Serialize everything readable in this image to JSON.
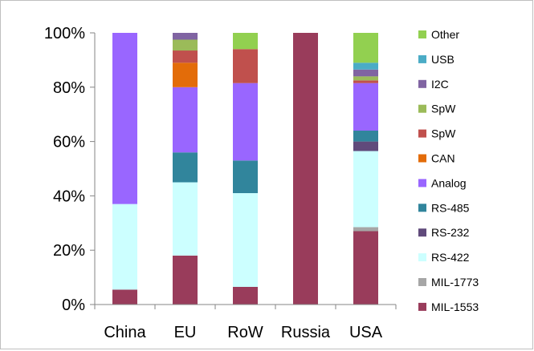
{
  "chart_data": {
    "type": "bar",
    "stacked": true,
    "categories": [
      "China",
      "EU",
      "RoW",
      "Russia",
      "USA"
    ],
    "ylim": [
      0,
      100
    ],
    "y_ticks": [
      "0%",
      "20%",
      "40%",
      "60%",
      "80%",
      "100%"
    ],
    "legend_position": "right",
    "grid": false,
    "series": [
      {
        "name": "MIL-1553",
        "color": "#993c5b",
        "values": [
          5.5,
          18,
          6.5,
          100,
          27
        ]
      },
      {
        "name": "MIL-1773",
        "color": "#a6a6a6",
        "values": [
          0,
          0,
          0,
          0,
          1.5
        ]
      },
      {
        "name": "RS-422",
        "color": "#ccffff",
        "values": [
          31.5,
          27,
          34.5,
          0,
          28
        ]
      },
      {
        "name": "RS-232",
        "color": "#604a7b",
        "values": [
          0,
          0,
          0,
          0,
          3.5
        ]
      },
      {
        "name": "RS-485",
        "color": "#31859c",
        "values": [
          0,
          11,
          12,
          0,
          4
        ]
      },
      {
        "name": "Analog",
        "color": "#9966ff",
        "values": [
          63,
          24,
          28.5,
          0,
          17.5
        ]
      },
      {
        "name": "CAN",
        "color": "#e36c09",
        "values": [
          0,
          9,
          0,
          0,
          0
        ]
      },
      {
        "name": "SpW",
        "color": "#c0504d",
        "values": [
          0,
          4.5,
          12.5,
          0,
          1
        ]
      },
      {
        "name": "SpW",
        "color": "#9bbb59",
        "values": [
          0,
          4,
          0,
          0,
          1.5
        ]
      },
      {
        "name": "I2C",
        "color": "#8064a2",
        "values": [
          0,
          2.5,
          0,
          0,
          2.5
        ]
      },
      {
        "name": "USB",
        "color": "#4bacc6",
        "values": [
          0,
          0,
          0,
          0,
          2.5
        ]
      },
      {
        "name": "Other",
        "color": "#92d050",
        "values": [
          0,
          0,
          6,
          0,
          11
        ]
      }
    ]
  }
}
